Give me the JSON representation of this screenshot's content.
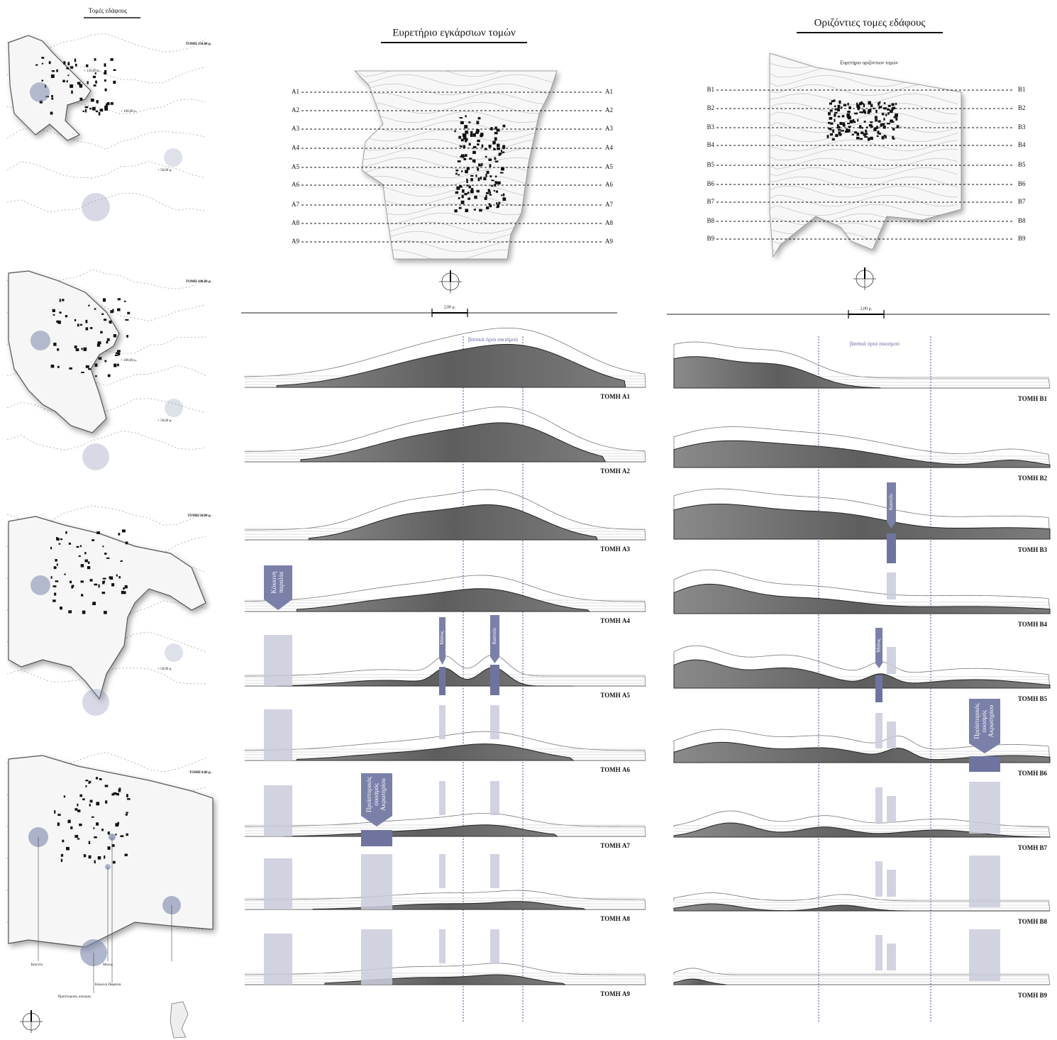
{
  "left": {
    "title": "Τομές εδάφους",
    "maps": [
      {
        "label": "ΤΟΜΗ 150,00 μ.",
        "notes": [
          "+ 150,00 μ.",
          "+ 100,00 μ.",
          "+ 50,00 μ."
        ]
      },
      {
        "label": "ΤΟΜΗ 100,00 μ.",
        "notes": [
          "+ 100,00 μ.",
          "+ 50,00 μ."
        ]
      },
      {
        "label": "ΤΟΜΗ 50,00 μ.",
        "notes": [
          "+ 50,00 μ."
        ]
      },
      {
        "label": "ΤΟΜΗ 0,00 μ.",
        "notes": [
          "Καστέλι",
          "Μόλος",
          "Κόκκινη Παραλία",
          "Προϊστορικός οικισμός"
        ]
      }
    ]
  },
  "transverse": {
    "title": "Ευρετήριο εγκάρσιων τομών",
    "lines": [
      "A1",
      "A2",
      "A3",
      "A4",
      "A5",
      "A6",
      "A7",
      "A8",
      "A9"
    ],
    "scale": "2,00 μ.",
    "boundary": "βασικά όρια οικισμού",
    "sections": [
      "ΤΟΜΗ A1",
      "ΤΟΜΗ A2",
      "ΤΟΜΗ A3",
      "ΤΟΜΗ A4",
      "ΤΟΜΗ A5",
      "ΤΟΜΗ A6",
      "ΤΟΜΗ A7",
      "ΤΟΜΗ A8",
      "ΤΟΜΗ A9"
    ],
    "markers": [
      {
        "label": [
          "Κόκκινη",
          "παραλία"
        ]
      },
      {
        "label": [
          "Μόλος"
        ]
      },
      {
        "label": [
          "Καστέλι"
        ]
      },
      {
        "label": [
          "Προϊστορικός",
          "οικισμός",
          "Ακρωτηρίου"
        ]
      }
    ]
  },
  "horizontal": {
    "title": "Οριζόντιες τομες εδάφους",
    "subtitle": "Ευρετήριο οριζόντιων τομών",
    "lines": [
      "B1",
      "B2",
      "B3",
      "B4",
      "B5",
      "B6",
      "B7",
      "B8",
      "B9"
    ],
    "scale": "2,00 μ.",
    "boundary": "βασικά όρια οικισμού",
    "sections": [
      "ΤΟΜΗ B1",
      "ΤΟΜΗ B2",
      "ΤΟΜΗ B3",
      "ΤΟΜΗ B4",
      "ΤΟΜΗ B5",
      "ΤΟΜΗ B6",
      "ΤΟΜΗ B7",
      "ΤΟΜΗ B8",
      "ΤΟΜΗ B9"
    ],
    "markers": [
      {
        "label": [
          "Καστέλι"
        ]
      },
      {
        "label": [
          "Μόλος"
        ]
      },
      {
        "label": [
          "Προϊστορικός",
          "οικισμός",
          "Ακρωτηρίου"
        ]
      }
    ]
  }
}
